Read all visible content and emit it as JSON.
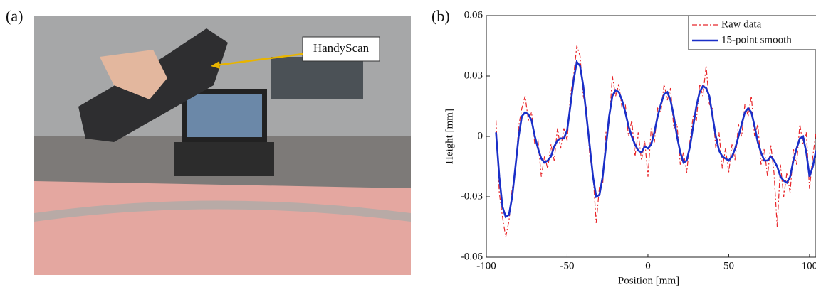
{
  "panel_a": {
    "label": "(a)",
    "annotation": "HandyScan"
  },
  "chart_data": {
    "type": "line",
    "panel_label": "(b)",
    "xlabel": "Position [mm]",
    "ylabel": "Height  [mm]",
    "x": [
      -94,
      -92,
      -90,
      -88,
      -86,
      -84,
      -82,
      -80,
      -78,
      -76,
      -74,
      -72,
      -70,
      -68,
      -66,
      -64,
      -62,
      -60,
      -58,
      -56,
      -54,
      -52,
      -50,
      -48,
      -46,
      -44,
      -42,
      -40,
      -38,
      -36,
      -34,
      -32,
      -30,
      -28,
      -26,
      -24,
      -22,
      -20,
      -18,
      -16,
      -14,
      -12,
      -10,
      -8,
      -6,
      -4,
      -2,
      0,
      2,
      4,
      6,
      8,
      10,
      12,
      14,
      16,
      18,
      20,
      22,
      24,
      26,
      28,
      30,
      32,
      34,
      36,
      38,
      40,
      42,
      44,
      46,
      48,
      50,
      52,
      54,
      56,
      58,
      60,
      62,
      64,
      66,
      68,
      70,
      72,
      74,
      76,
      78,
      80,
      82,
      84,
      86,
      88,
      90,
      92,
      94,
      96,
      98,
      100,
      102,
      104
    ],
    "series": [
      {
        "name": "Raw data",
        "color": "#e8262a",
        "dash": "dashdot",
        "values": [
          0.008,
          -0.028,
          -0.04,
          -0.05,
          -0.042,
          -0.026,
          -0.018,
          0.005,
          0.014,
          0.02,
          0.008,
          0.012,
          -0.004,
          -0.002,
          -0.02,
          -0.01,
          -0.016,
          -0.004,
          -0.012,
          0.004,
          -0.006,
          0.004,
          -0.002,
          0.02,
          0.03,
          0.045,
          0.04,
          0.02,
          0.014,
          -0.01,
          -0.018,
          -0.043,
          -0.025,
          -0.024,
          0.002,
          0.006,
          0.03,
          0.02,
          0.026,
          0.014,
          0.016,
          0.0,
          0.008,
          -0.01,
          0.002,
          -0.012,
          -0.002,
          -0.02,
          0.004,
          -0.003,
          0.014,
          0.012,
          0.026,
          0.018,
          0.024,
          0.004,
          0.006,
          -0.014,
          -0.008,
          -0.018,
          -0.002,
          0.01,
          0.008,
          0.026,
          0.02,
          0.035,
          0.016,
          0.014,
          -0.006,
          0.002,
          -0.016,
          -0.006,
          -0.018,
          -0.004,
          -0.012,
          0.006,
          0.0,
          0.016,
          0.01,
          0.02,
          0.0,
          0.006,
          -0.014,
          -0.006,
          -0.02,
          -0.004,
          -0.018,
          -0.045,
          -0.014,
          -0.03,
          -0.018,
          -0.028,
          -0.006,
          -0.014,
          0.006,
          -0.004,
          0.002,
          -0.026,
          -0.01,
          0.002
        ]
      },
      {
        "name": "15-point smooth",
        "color": "#1a2fc8",
        "dash": "solid",
        "values": [
          0.002,
          -0.02,
          -0.035,
          -0.04,
          -0.039,
          -0.03,
          -0.015,
          0,
          0.01,
          0.012,
          0.011,
          0.008,
          0,
          -0.006,
          -0.011,
          -0.013,
          -0.012,
          -0.01,
          -0.005,
          -0.002,
          -0.001,
          -0.001,
          0.003,
          0.015,
          0.028,
          0.037,
          0.035,
          0.025,
          0.01,
          -0.005,
          -0.02,
          -0.03,
          -0.029,
          -0.02,
          -0.005,
          0.01,
          0.02,
          0.023,
          0.022,
          0.018,
          0.012,
          0.005,
          0,
          -0.004,
          -0.007,
          -0.008,
          -0.005,
          -0.006,
          -0.004,
          0.002,
          0.01,
          0.016,
          0.021,
          0.022,
          0.018,
          0.01,
          0,
          -0.008,
          -0.013,
          -0.012,
          -0.005,
          0.005,
          0.015,
          0.022,
          0.025,
          0.024,
          0.02,
          0.01,
          0,
          -0.007,
          -0.01,
          -0.011,
          -0.012,
          -0.01,
          -0.006,
          0,
          0.006,
          0.012,
          0.014,
          0.012,
          0.005,
          -0.003,
          -0.008,
          -0.012,
          -0.012,
          -0.01,
          -0.012,
          -0.015,
          -0.02,
          -0.022,
          -0.023,
          -0.02,
          -0.012,
          -0.006,
          -0.001,
          0,
          -0.008,
          -0.02,
          -0.015,
          -0.007
        ]
      }
    ],
    "xlim": [
      -100,
      104
    ],
    "xticks": [
      -100,
      -50,
      0,
      50,
      100
    ],
    "ylim": [
      -0.06,
      0.06
    ],
    "yticks": [
      -0.06,
      -0.03,
      0,
      0.03,
      0.06
    ],
    "legend": "upper right"
  }
}
